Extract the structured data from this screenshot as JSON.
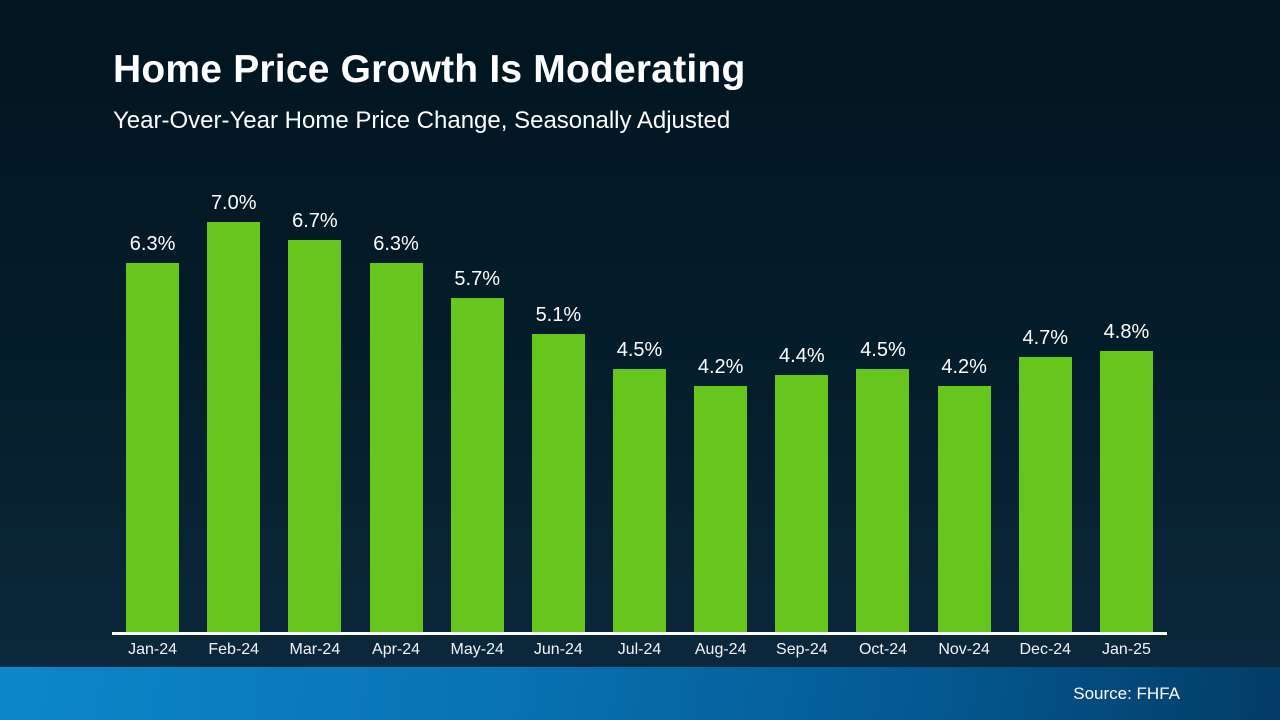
{
  "header": {
    "title": "Home Price Growth Is Moderating",
    "subtitle": "Year-Over-Year Home Price Change, Seasonally Adjusted"
  },
  "footer": {
    "source_label": "Source: FHFA"
  },
  "colors": {
    "bar_fill": "#66c61e",
    "background_top": "#021520",
    "background_bottom": "#0d2940",
    "axis_line": "#ffffff",
    "footer_gradient_left": "#0d87cb",
    "footer_gradient_right": "#033c66",
    "text": "#ffffff"
  },
  "chart_data": {
    "type": "bar",
    "title": "Home Price Growth Is Moderating",
    "subtitle": "Year-Over-Year Home Price Change, Seasonally Adjusted",
    "categories": [
      "Jan-24",
      "Feb-24",
      "Mar-24",
      "Apr-24",
      "May-24",
      "Jun-24",
      "Jul-24",
      "Aug-24",
      "Sep-24",
      "Oct-24",
      "Nov-24",
      "Dec-24",
      "Jan-25"
    ],
    "values": [
      6.3,
      7.0,
      6.7,
      6.3,
      5.7,
      5.1,
      4.5,
      4.2,
      4.4,
      4.5,
      4.2,
      4.7,
      4.8
    ],
    "value_labels": [
      "6.3%",
      "7.0%",
      "6.7%",
      "6.3%",
      "5.7%",
      "5.1%",
      "4.5%",
      "4.2%",
      "4.4%",
      "4.5%",
      "4.2%",
      "4.7%",
      "4.8%"
    ],
    "xlabel": "",
    "ylabel": "",
    "ylim": [
      0,
      7.6
    ],
    "grid": false,
    "legend": null,
    "data_labels": true,
    "source": "Source: FHFA"
  }
}
